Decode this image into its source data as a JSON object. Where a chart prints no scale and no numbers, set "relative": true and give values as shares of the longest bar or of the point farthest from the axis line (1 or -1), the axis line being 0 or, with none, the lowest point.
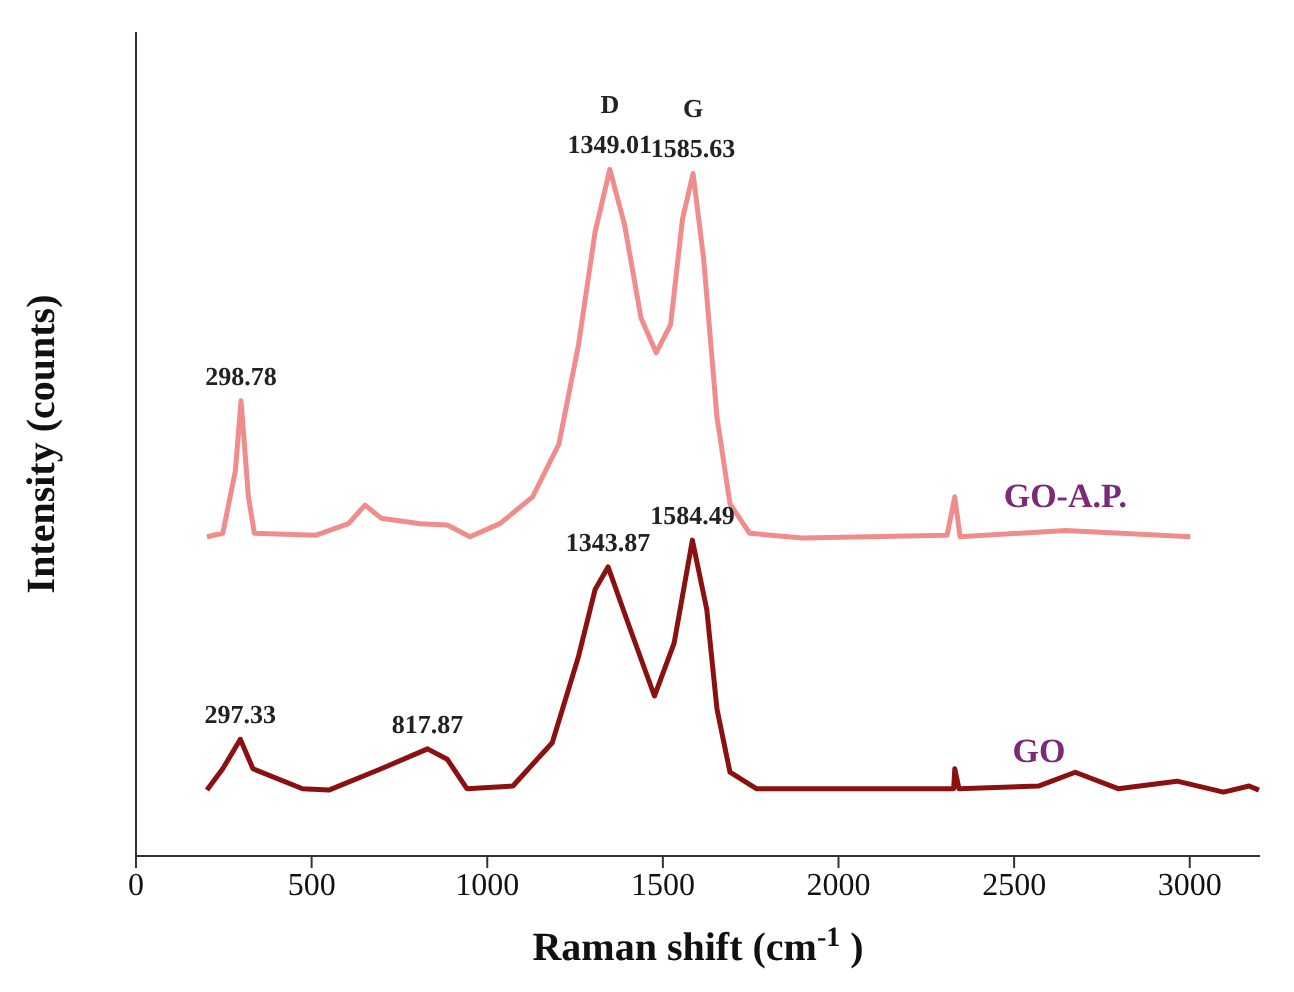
{
  "chart_data": {
    "type": "line",
    "relative": true,
    "xlabel": "Raman shift (cm$^{-1}$)",
    "ylabel": "Intensity (counts)",
    "xlim": [
      0,
      3200
    ],
    "xticks": [
      0,
      500,
      1000,
      1500,
      2000,
      2500,
      3000
    ],
    "marker": "none",
    "line_style": "solid",
    "series": [
      {
        "name": "GO-A.P.",
        "color": "#f08c8c",
        "x": [
          202,
          247,
          283,
          299,
          320,
          337,
          511,
          605,
          652,
          698,
          810,
          886,
          951,
          1036,
          1129,
          1204,
          1260,
          1307,
          1349,
          1391,
          1438,
          1481,
          1522,
          1556,
          1586,
          1616,
          1654,
          1691,
          1747,
          1897,
          2309,
          2331,
          2346,
          2646,
          3002
        ],
        "values": [
          0.465,
          0.47,
          0.561,
          0.663,
          0.523,
          0.47,
          0.467,
          0.484,
          0.511,
          0.492,
          0.484,
          0.482,
          0.465,
          0.484,
          0.523,
          0.6,
          0.745,
          0.909,
          1.0,
          0.919,
          0.783,
          0.733,
          0.774,
          0.928,
          0.994,
          0.87,
          0.639,
          0.513,
          0.47,
          0.463,
          0.467,
          0.523,
          0.465,
          0.474,
          0.465
        ]
      },
      {
        "name": "GO",
        "color": "#8b1010",
        "x": [
          202,
          247,
          297,
          333,
          474,
          549,
          698,
          830,
          886,
          942,
          1073,
          1185,
          1260,
          1307,
          1344,
          1401,
          1476,
          1532,
          1584,
          1625,
          1654,
          1691,
          1766,
          2328,
          2331,
          2343,
          2571,
          2674,
          2796,
          2964,
          3096,
          3169,
          3197
        ],
        "values": [
          0.096,
          0.127,
          0.17,
          0.127,
          0.098,
          0.096,
          0.127,
          0.156,
          0.141,
          0.098,
          0.102,
          0.165,
          0.291,
          0.388,
          0.421,
          0.339,
          0.233,
          0.31,
          0.46,
          0.359,
          0.214,
          0.122,
          0.098,
          0.098,
          0.127,
          0.098,
          0.102,
          0.122,
          0.098,
          0.109,
          0.093,
          0.102,
          0.096
        ]
      }
    ],
    "annotations": [
      {
        "text": "1349.01",
        "x": 1349,
        "y": 1.0
      },
      {
        "text": "D",
        "x": 1349,
        "y": 1.0
      },
      {
        "text": "1585.63",
        "x": 1586,
        "y": 0.994
      },
      {
        "text": "G",
        "x": 1586,
        "y": 0.994
      },
      {
        "text": "298.78",
        "x": 299,
        "y": 0.663
      },
      {
        "text": "1343.87",
        "x": 1344,
        "y": 0.421
      },
      {
        "text": "1584.49",
        "x": 1584,
        "y": 0.46
      },
      {
        "text": "297.33",
        "x": 297,
        "y": 0.17
      },
      {
        "text": "817.87",
        "x": 830,
        "y": 0.156
      }
    ]
  }
}
